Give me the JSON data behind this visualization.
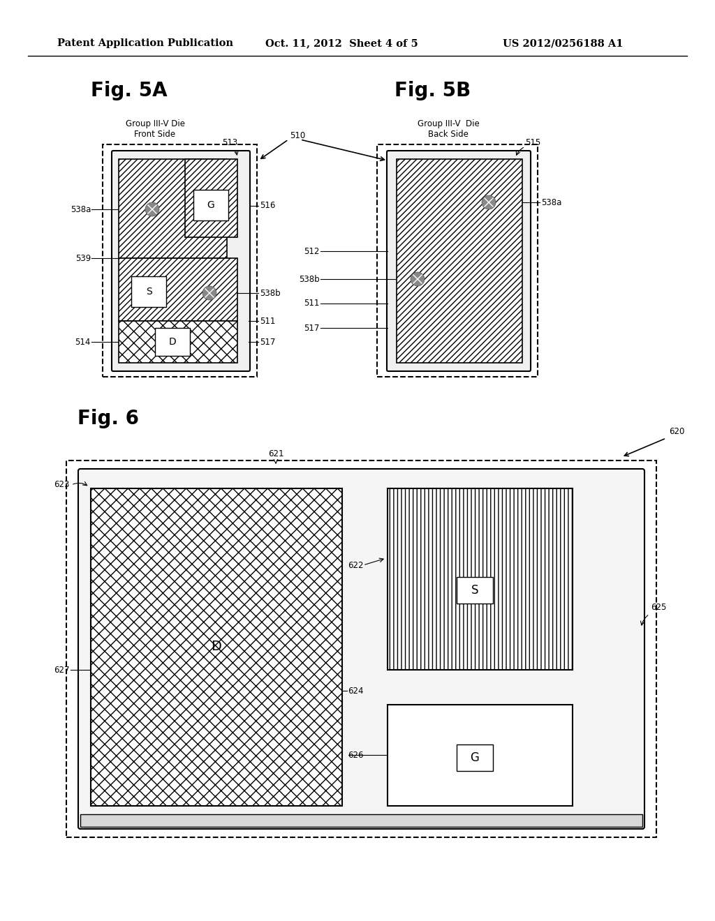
{
  "bg_color": "#ffffff",
  "header_text": "Patent Application Publication",
  "header_date": "Oct. 11, 2012  Sheet 4 of 5",
  "header_patent": "US 2012/0256188 A1",
  "fig5a_title": "Fig. 5A",
  "fig5b_title": "Fig. 5B",
  "fig6_title": "Fig. 6",
  "fig5a_label1": "Group III-V Die",
  "fig5a_label2": "Front Side",
  "fig5b_label1": "Group III-V  Die",
  "fig5b_label2": "Back Side"
}
